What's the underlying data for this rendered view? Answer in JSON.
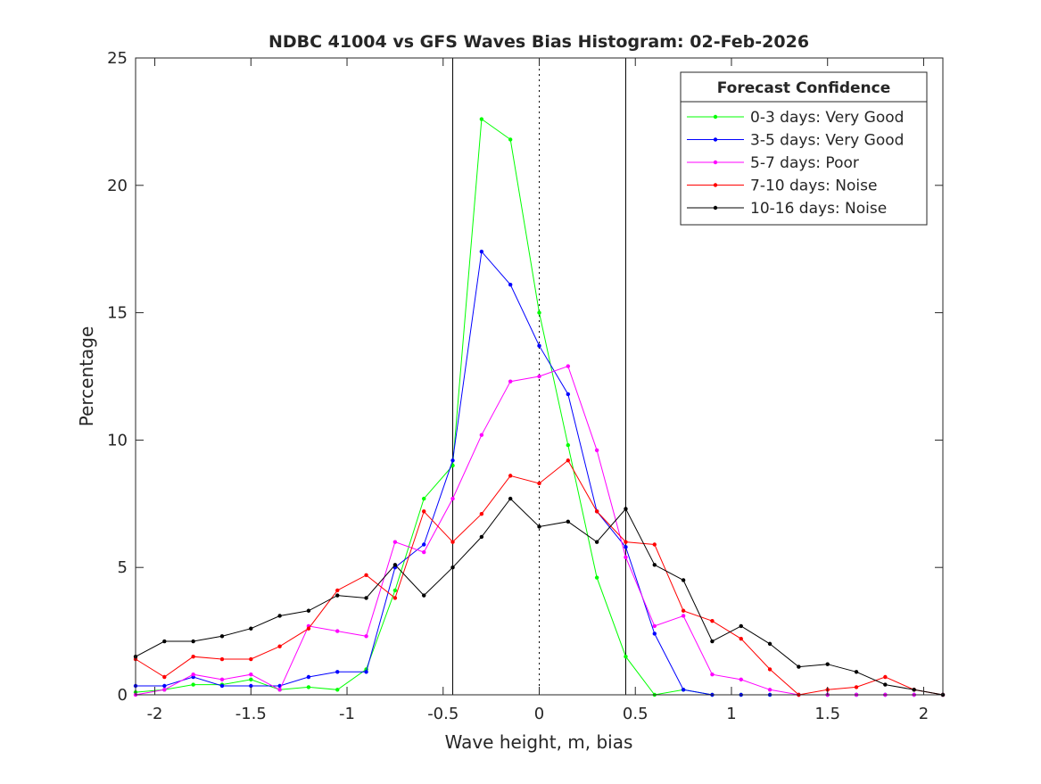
{
  "chart_data": {
    "type": "line",
    "title": "NDBC 41004 vs GFS Waves Bias Histogram: 02-Feb-2026",
    "xlabel": "Wave height, m, bias",
    "ylabel": "Percentage",
    "xlim": [
      -2.1,
      2.1
    ],
    "ylim": [
      0,
      25
    ],
    "xticks": [
      -2,
      -1.5,
      -1,
      -0.5,
      0,
      0.5,
      1,
      1.5,
      2
    ],
    "xtick_labels": [
      "-2",
      "-1.5",
      "-1",
      "-0.5",
      "0",
      "0.5",
      "1",
      "1.5",
      "2"
    ],
    "yticks": [
      0,
      5,
      10,
      15,
      20,
      25
    ],
    "ytick_labels": [
      "0",
      "5",
      "10",
      "15",
      "20",
      "25"
    ],
    "grid": false,
    "reference_lines": [
      {
        "x": -0.45,
        "style": "solid"
      },
      {
        "x": 0,
        "style": "dotted"
      },
      {
        "x": 0.45,
        "style": "solid"
      }
    ],
    "legend": {
      "title": "Forecast Confidence",
      "placement": "top-right"
    },
    "x": [
      -2.1,
      -1.95,
      -1.8,
      -1.65,
      -1.5,
      -1.35,
      -1.2,
      -1.05,
      -0.9,
      -0.75,
      -0.6,
      -0.45,
      -0.3,
      -0.15,
      0,
      0.15,
      0.3,
      0.45,
      0.6,
      0.75,
      0.9,
      1.05,
      1.2,
      1.35,
      1.5,
      1.65,
      1.8,
      1.95,
      2.1
    ],
    "series": [
      {
        "name": "0-3 days: Very Good",
        "color": "#00ff00",
        "values": [
          0.1,
          0.2,
          0.4,
          0.4,
          0.6,
          0.2,
          0.3,
          0.2,
          1.0,
          4.1,
          7.7,
          9.0,
          22.6,
          21.8,
          15.0,
          9.8,
          4.6,
          1.5,
          0,
          0.2,
          0,
          0,
          0,
          0,
          0,
          0,
          0,
          0,
          0
        ]
      },
      {
        "name": "3-5 days: Very Good",
        "color": "#0000ff",
        "values": [
          0.35,
          0.35,
          0.7,
          0.35,
          0.35,
          0.35,
          0.7,
          0.9,
          0.9,
          5.0,
          5.9,
          9.2,
          17.4,
          16.1,
          13.7,
          11.8,
          7.2,
          5.8,
          2.4,
          0.2,
          0,
          0,
          0,
          0,
          0,
          0,
          0,
          0,
          0
        ]
      },
      {
        "name": "5-7 days: Poor",
        "color": "#ff00ff",
        "values": [
          0,
          0.2,
          0.8,
          0.6,
          0.8,
          0.2,
          2.7,
          2.5,
          2.3,
          6.0,
          5.6,
          7.7,
          10.2,
          12.3,
          12.5,
          12.9,
          9.6,
          5.4,
          2.7,
          3.1,
          0.8,
          0.6,
          0.2,
          0,
          0,
          0,
          0,
          0,
          0
        ]
      },
      {
        "name": "7-10 days: Noise",
        "color": "#ff0000",
        "values": [
          1.4,
          0.7,
          1.5,
          1.4,
          1.4,
          1.9,
          2.6,
          4.1,
          4.7,
          3.8,
          7.2,
          6.0,
          7.1,
          8.6,
          8.3,
          9.2,
          7.2,
          6.0,
          5.9,
          3.3,
          2.9,
          2.2,
          1.0,
          0,
          0.2,
          0.3,
          0.7,
          0.2,
          0
        ]
      },
      {
        "name": "10-16 days: Noise",
        "color": "#000000",
        "values": [
          1.5,
          2.1,
          2.1,
          2.3,
          2.6,
          3.1,
          3.3,
          3.9,
          3.8,
          5.1,
          3.9,
          5.0,
          6.2,
          7.7,
          6.6,
          6.8,
          6.0,
          7.3,
          5.1,
          4.5,
          2.1,
          2.7,
          2.0,
          1.1,
          1.2,
          0.9,
          0.4,
          0.2,
          0
        ]
      }
    ]
  }
}
